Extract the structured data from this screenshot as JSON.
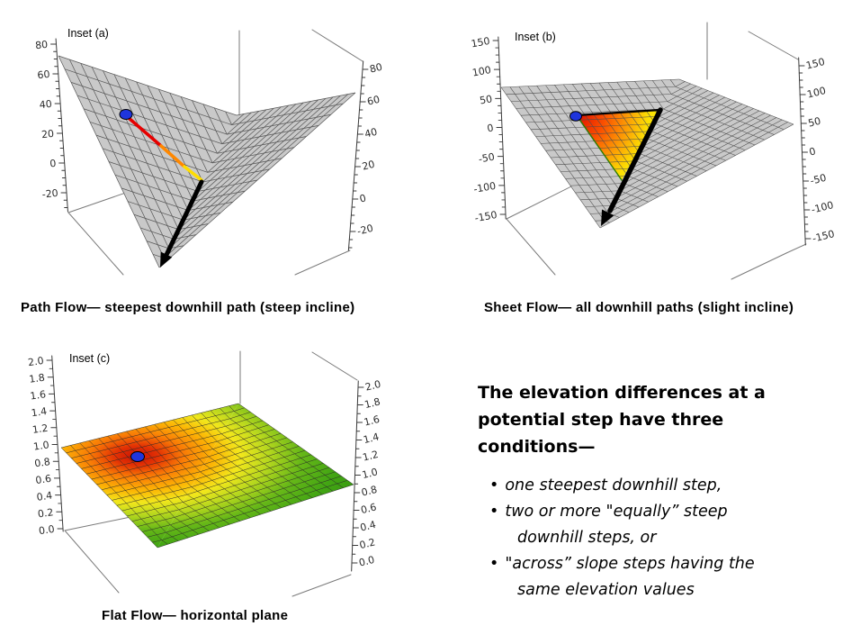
{
  "figure": {
    "background": "#ffffff",
    "insets": [
      {
        "id": "a",
        "label": "Inset (a)",
        "caption": "Path Flow— steepest downhill path (steep incline)",
        "axis_ticks_left": [
          "80",
          "60",
          "40",
          "20",
          "0",
          "-20"
        ],
        "axis_ticks_right": [
          "80",
          "60",
          "40",
          "20",
          "0",
          "-20"
        ],
        "surface_color": "#c9c9c9",
        "marker_color": "#1f35dd",
        "path_colors": [
          "#e60000",
          "#ff8800",
          "#ffdd00"
        ],
        "arrow_color": "#000000"
      },
      {
        "id": "b",
        "label": "Inset (b)",
        "caption": "Sheet Flow— all downhill paths (slight incline)",
        "axis_ticks_left": [
          "150",
          "100",
          "50",
          "0",
          "-50",
          "-100",
          "-150"
        ],
        "axis_ticks_right": [
          "150",
          "100",
          "50",
          "0",
          "-50",
          "-100",
          "-150"
        ],
        "surface_color": "#c9c9c9",
        "marker_color": "#1f35dd",
        "sheet_gradient": [
          "#e01000",
          "#fb5000",
          "#fc9b04",
          "#fcdf03",
          "#f6ec05"
        ],
        "sheet_edge_green": "#2f7d00",
        "arrow_color": "#000000"
      },
      {
        "id": "c",
        "label": "Inset (c)",
        "caption": "Flat Flow— horizontal plane",
        "axis_ticks_left": [
          "2.0",
          "1.8",
          "1.6",
          "1.4",
          "1.2",
          "1.0",
          "0.8",
          "0.6",
          "0.4",
          "0.2",
          "0.0"
        ],
        "axis_ticks_right": [
          "2.0",
          "1.8",
          "1.6",
          "1.4",
          "1.2",
          "1.0",
          "0.8",
          "0.6",
          "0.4",
          "0.2",
          "0.0"
        ],
        "surface_gradient": [
          "#c81405",
          "#e33104",
          "#f97b06",
          "#fcb605",
          "#f2e71c",
          "#b5d71e",
          "#66b718",
          "#42a513",
          "#37990f"
        ],
        "marker_color": "#1f35dd"
      }
    ],
    "text_panel": {
      "heading": "The elevation differences at a potential step have three conditions—",
      "bullet_marker": "•",
      "bullets": [
        "one steepest downhill step,",
        "two or more \"equally” steep downhill steps, or",
        "\"across” slope steps having the same elevation values"
      ]
    }
  },
  "chart_data": [
    {
      "type": "surface",
      "title": "Inset (a)",
      "caption": "Path Flow— steepest downhill path (steep incline)",
      "z_axis_ticks": [
        80,
        60,
        40,
        20,
        0,
        -20
      ],
      "z_range": [
        -20,
        80
      ],
      "surface": "V-shaped valley: two steep planar slopes (gray mesh) meeting along a downhill valley line",
      "annotations": [
        "blue start-point marker on the upper slope",
        "steepest-descent path colored red to orange to yellow running straight down the slope to the valley line",
        "thick black arrow continuing downhill along the valley line"
      ]
    },
    {
      "type": "surface",
      "title": "Inset (b)",
      "caption": "Sheet Flow— all downhill paths (slight incline)",
      "z_axis_ticks": [
        150,
        100,
        50,
        0,
        -50,
        -100,
        -150
      ],
      "z_range": [
        -150,
        150
      ],
      "surface": "slightly inclined plane (gray mesh)",
      "annotations": [
        "blue start-point marker at the apex of the fan",
        "triangular sheet-flow fan shaded red near the point through orange to yellow downslope",
        "thick black arrow along the right edge of the fan pointing downslope"
      ]
    },
    {
      "type": "surface",
      "title": "Inset (c)",
      "caption": "Flat Flow— horizontal plane",
      "z_axis_ticks": [
        2.0,
        1.8,
        1.6,
        1.4,
        1.2,
        1.0,
        0.8,
        0.6,
        0.4,
        0.2,
        0.0
      ],
      "z_range": [
        0,
        2
      ],
      "surface": "flat horizontal plane at z = 1 colored with an elevation-style gradient: red hot spot at the marker grading through orange and yellow to green at the edges",
      "annotations": [
        "blue start-point marker sitting on the red hot spot"
      ]
    }
  ]
}
